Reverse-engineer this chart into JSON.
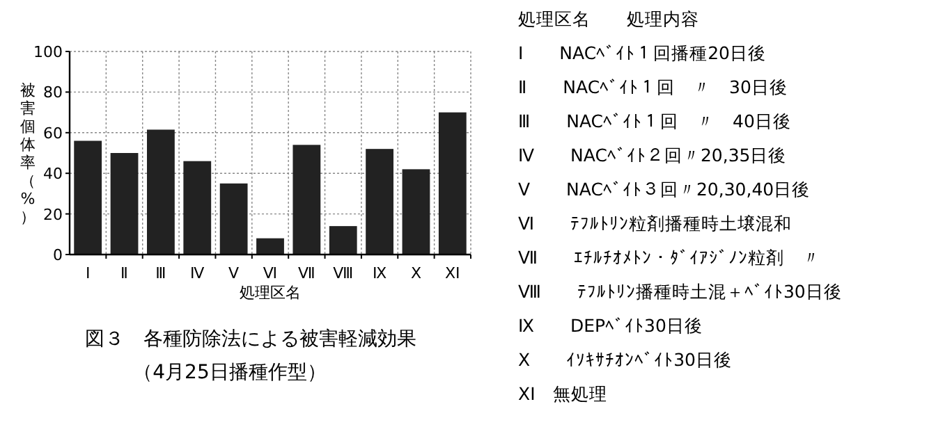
{
  "chart_data": {
    "type": "bar",
    "title": "図３　各種防除法による被害軽減効果",
    "subtitle": "（4月25日播種作型）",
    "xlabel": "処理区名",
    "ylabel": "被害個体率（%）",
    "categories": [
      "Ⅰ",
      "Ⅱ",
      "Ⅲ",
      "Ⅳ",
      "Ⅴ",
      "Ⅵ",
      "Ⅶ",
      "Ⅷ",
      "Ⅸ",
      "Ⅹ",
      "ⅩⅠ"
    ],
    "values": [
      56,
      50,
      61.5,
      46,
      35,
      8,
      54,
      14,
      52,
      42,
      70
    ],
    "color": "#222222",
    "ylim": [
      0,
      100
    ],
    "yticks": [
      0,
      20,
      40,
      60,
      80,
      100
    ],
    "grid": true,
    "annotations": [
      "処理区名　　処理内容",
      "Ⅰ　　NACﾍﾞｲﾄ１回播種20日後",
      "Ⅱ　　NACﾍﾞｲﾄ１回　〃　30日後",
      "Ⅲ　　NACﾍﾞｲﾄ１回　〃　40日後",
      "Ⅳ　　NACﾍﾞｲﾄ２回〃20,35日後",
      "Ⅴ　　NACﾍﾞｲﾄ３回〃20,30,40日後",
      "Ⅵ　　ﾃﾌﾙﾄﾘﾝ粒剤播種時土壌混和",
      "Ⅶ　　ｴﾁﾙﾁｵﾒﾄﾝ・ﾀﾞｲｱｼﾞﾉﾝ粒剤　〃",
      "Ⅷ　　ﾃﾌﾙﾄﾘﾝ播種時土混＋ﾍﾞｲﾄ30日後",
      "Ⅸ　　DEPﾍﾞｲﾄ30日後",
      "Ⅹ　　ｲｿｷｻﾁｵﾝﾍﾞｲﾄ30日後",
      "ⅩⅠ　無処理"
    ]
  }
}
